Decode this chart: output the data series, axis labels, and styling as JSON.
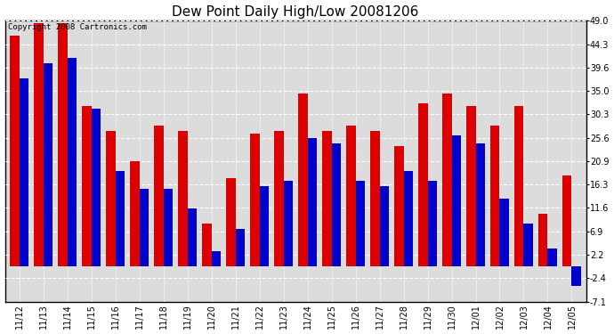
{
  "title": "Dew Point Daily High/Low 20081206",
  "copyright": "Copyright 2008 Cartronics.com",
  "categories": [
    "11/12",
    "11/13",
    "11/14",
    "11/15",
    "11/16",
    "11/17",
    "11/18",
    "11/19",
    "11/20",
    "11/21",
    "11/22",
    "11/23",
    "11/24",
    "11/25",
    "11/26",
    "11/27",
    "11/28",
    "11/29",
    "11/30",
    "12/01",
    "12/02",
    "12/03",
    "12/04",
    "12/05"
  ],
  "highs": [
    46.0,
    48.5,
    48.5,
    32.0,
    27.0,
    21.0,
    28.0,
    27.0,
    8.5,
    17.5,
    26.5,
    27.0,
    34.5,
    27.0,
    28.0,
    27.0,
    24.0,
    32.5,
    34.5,
    32.0,
    28.0,
    32.0,
    10.5,
    18.0
  ],
  "lows": [
    37.5,
    40.5,
    41.5,
    31.5,
    19.0,
    15.5,
    15.5,
    11.5,
    3.0,
    7.5,
    16.0,
    17.0,
    25.5,
    24.5,
    17.0,
    16.0,
    19.0,
    17.0,
    26.0,
    24.5,
    13.5,
    8.5,
    3.5,
    -4.0
  ],
  "high_color": "#dd0000",
  "low_color": "#0000cc",
  "background_color": "#ffffff",
  "plot_bg_color": "#dcdcdc",
  "grid_color": "#ffffff",
  "yticks": [
    -7.1,
    -2.4,
    2.2,
    6.9,
    11.6,
    16.3,
    20.9,
    25.6,
    30.3,
    35.0,
    39.6,
    44.3,
    49.0
  ],
  "ymin": -7.1,
  "ymax": 49.0,
  "bar_width": 0.38,
  "title_fontsize": 11,
  "tick_fontsize": 7,
  "copyright_fontsize": 6.5
}
